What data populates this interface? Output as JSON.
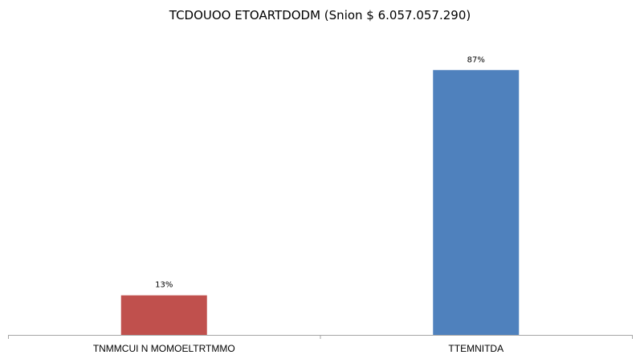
{
  "chart_data": {
    "type": "bar",
    "title": "TCDOUOO ETOARTDODM (Snion $ 6.057.057.290)",
    "categories": [
      "TNMMCUI N MOMOELTRTMMO",
      "TTEMNITDA"
    ],
    "values": [
      13,
      87
    ],
    "value_labels": [
      "13%",
      "87%"
    ],
    "colors": [
      "#c0504d",
      "#4f81bd"
    ],
    "xlabel": "",
    "ylabel": "",
    "ylim": [
      0,
      100
    ],
    "grid": false,
    "legend": "none"
  }
}
